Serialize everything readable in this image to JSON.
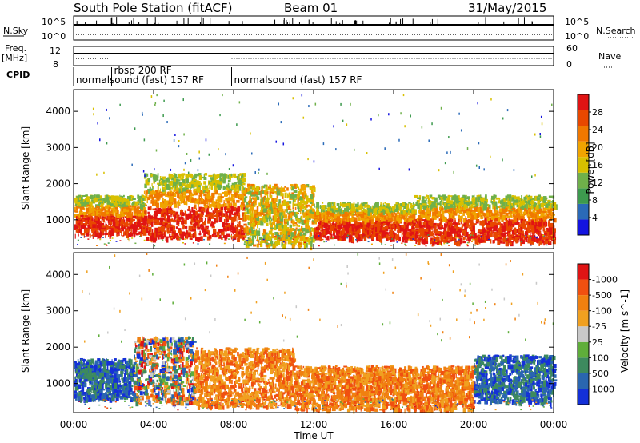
{
  "header": {
    "station": "South Pole Station (fitACF)",
    "beam": "Beam 01",
    "date": "31/May/2015"
  },
  "nsky_panel": {
    "left_label": "N.Sky",
    "left_ticks": [
      "10^5",
      "10^0"
    ],
    "right_label": "N.Search",
    "right_ticks": [
      "10^5",
      "10^0"
    ]
  },
  "freq_panel": {
    "left_label_line1": "Freq.",
    "left_label_line2": "[MHz]",
    "left_ticks": [
      "12",
      "8"
    ],
    "right_label": "Nave",
    "right_ticks": [
      "60",
      "0"
    ]
  },
  "cpid": {
    "label": "CPID",
    "modes": [
      {
        "text": "normalsound (fast) 157 RF",
        "start_hour": 0.0
      },
      {
        "text": "rbsp 200 RF",
        "start_hour": 1.9
      },
      {
        "text": "normalsound (fast) 157 RF",
        "start_hour": 7.9
      }
    ]
  },
  "x_axis": {
    "label": "Time UT",
    "ticks": [
      "00:00",
      "04:00",
      "08:00",
      "12:00",
      "16:00",
      "20:00",
      "00:00"
    ],
    "tick_hours": [
      0,
      4,
      8,
      12,
      16,
      20,
      24
    ]
  },
  "chart_data": [
    {
      "type": "heatmap",
      "panel": "power",
      "ylabel": "Slant Range [km]",
      "yticks": [
        "1000",
        "2000",
        "3000",
        "4000"
      ],
      "ylim": [
        200,
        4600
      ],
      "xlim": [
        0,
        24
      ],
      "colorbar": {
        "label": "Power [dB]",
        "ticks": [
          "4",
          "8",
          "12",
          "16",
          "20",
          "24",
          "28"
        ],
        "colors": [
          "#1414e0",
          "#2a6ab8",
          "#3d9a4e",
          "#6fb04a",
          "#d8c000",
          "#f0a400",
          "#f07800",
          "#e84800",
          "#e01414"
        ]
      },
      "bands": [
        {
          "from_hour": 0.0,
          "to_hour": 3.5,
          "range_low": 600,
          "range_high": 1700,
          "level": "high"
        },
        {
          "from_hour": 3.5,
          "to_hour": 8.5,
          "range_low": 500,
          "range_high": 2300,
          "level": "high"
        },
        {
          "from_hour": 8.5,
          "to_hour": 12.0,
          "range_low": 300,
          "range_high": 2000,
          "level": "medium"
        },
        {
          "from_hour": 12.0,
          "to_hour": 17.0,
          "range_low": 500,
          "range_high": 1500,
          "level": "high"
        },
        {
          "from_hour": 17.0,
          "to_hour": 24.0,
          "range_low": 400,
          "range_high": 1700,
          "level": "high"
        }
      ]
    },
    {
      "type": "heatmap",
      "panel": "velocity",
      "ylabel": "Slant Range [km]",
      "yticks": [
        "1000",
        "2000",
        "3000",
        "4000"
      ],
      "ylim": [
        200,
        4600
      ],
      "xlim": [
        0,
        24
      ],
      "colorbar": {
        "label": "Velocity [m s^-1]",
        "ticks": [
          "1000",
          "500",
          "100",
          "25",
          "-25",
          "-100",
          "-500",
          "-1000"
        ],
        "colors": [
          "#1430d8",
          "#2a66b0",
          "#3d8a5e",
          "#5fae3a",
          "#c8c8c8",
          "#f0a020",
          "#f08010",
          "#f05010",
          "#e01414"
        ]
      },
      "bands": [
        {
          "from_hour": 0.0,
          "to_hour": 3.0,
          "range_low": 600,
          "range_high": 1700,
          "level": "toward"
        },
        {
          "from_hour": 3.0,
          "to_hour": 6.0,
          "range_low": 500,
          "range_high": 2300,
          "level": "mixed"
        },
        {
          "from_hour": 6.0,
          "to_hour": 11.0,
          "range_low": 400,
          "range_high": 2000,
          "level": "away"
        },
        {
          "from_hour": 11.0,
          "to_hour": 20.0,
          "range_low": 300,
          "range_high": 1500,
          "level": "away"
        },
        {
          "from_hour": 20.0,
          "to_hour": 24.0,
          "range_low": 500,
          "range_high": 1800,
          "level": "toward"
        }
      ]
    }
  ]
}
